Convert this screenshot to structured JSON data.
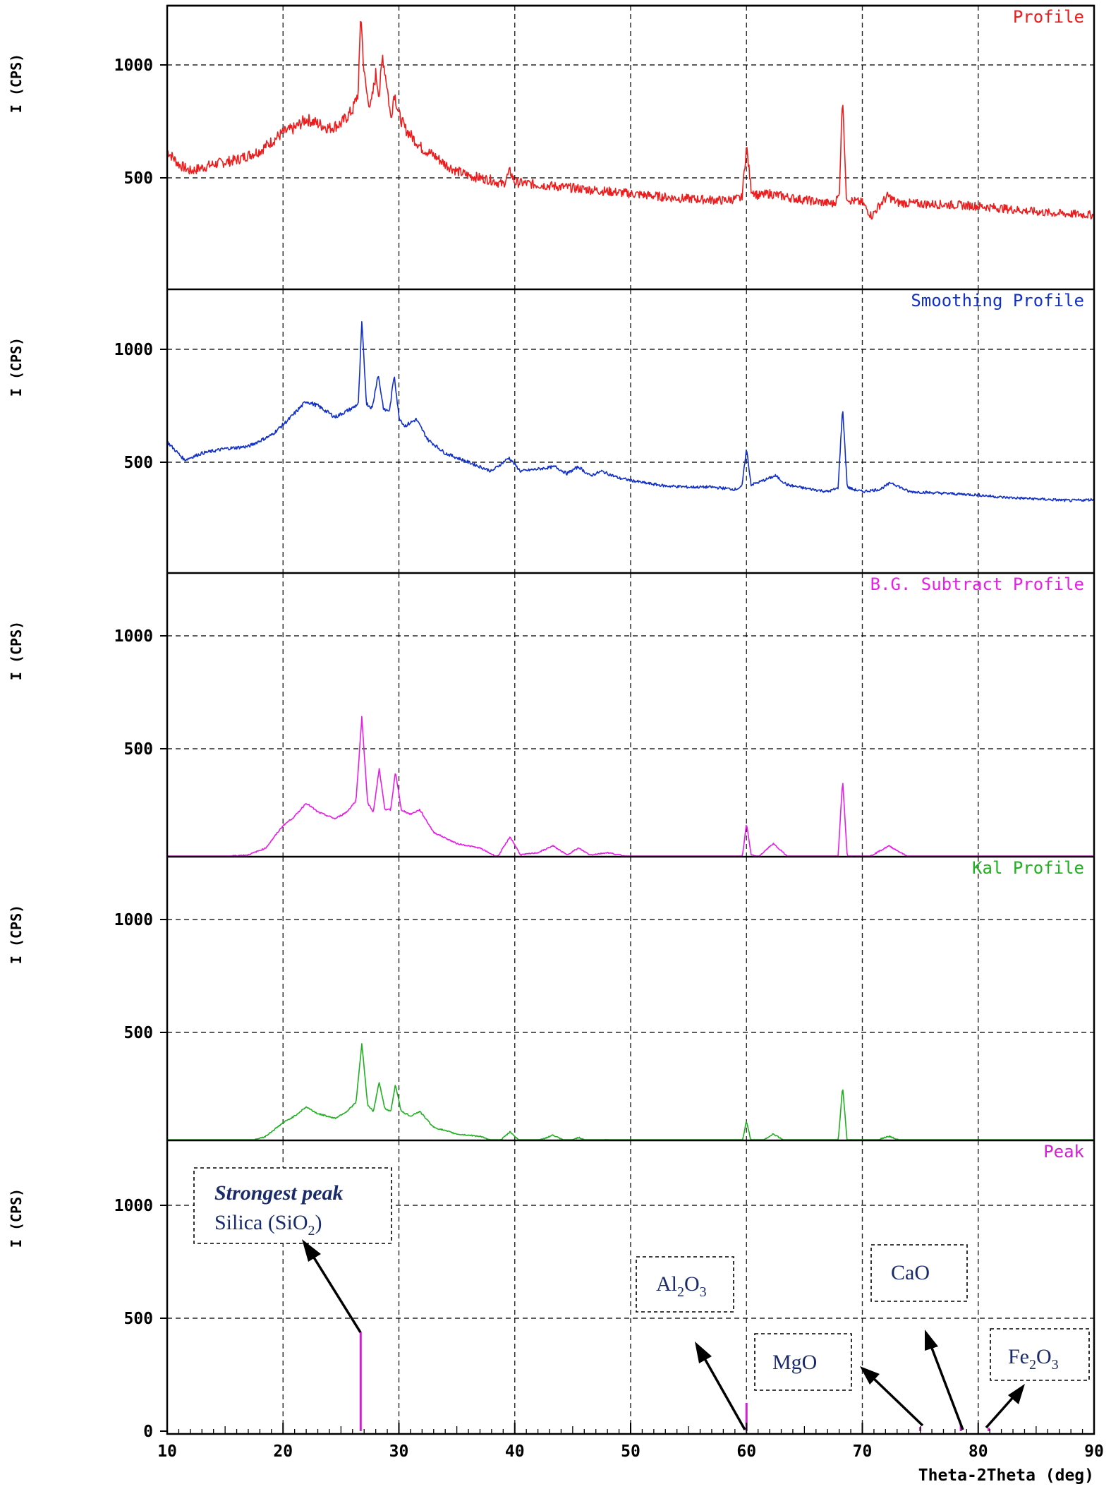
{
  "chart_data": {
    "type": "line",
    "xlabel": "Theta-2Theta (deg)",
    "xlim": [
      10,
      90
    ],
    "x_ticks": [
      "10",
      "20",
      "30",
      "40",
      "50",
      "60",
      "70",
      "80",
      "90"
    ],
    "panels": [
      {
        "ylabel": "I (CPS)",
        "ylim": [
          200,
          1250
        ],
        "y_ticks": [
          "500",
          "1000"
        ],
        "series": [
          {
            "name": "Profile",
            "color": "#ee1c1c",
            "noise": 22,
            "x": [
              10,
              11,
              12,
              14,
              16,
              18,
              19,
              20,
              21,
              22,
              23,
              24,
              25,
              26,
              26.5,
              26.7,
              27,
              27.3,
              27.6,
              28,
              28.3,
              28.6,
              29,
              29.3,
              29.6,
              30,
              30.5,
              31,
              31.5,
              32,
              33,
              34,
              35,
              36,
              37,
              38,
              39,
              39.6,
              40,
              42,
              44,
              46,
              48,
              50,
              52,
              54,
              56,
              58,
              59.6,
              60,
              60.4,
              61,
              62,
              63,
              64,
              66,
              67.5,
              68,
              68.3,
              68.6,
              69,
              70,
              70.8,
              71.5,
              72.2,
              73,
              75,
              78,
              80,
              82,
              84,
              86,
              88,
              90
            ],
            "y": [
              620,
              560,
              530,
              560,
              580,
              620,
              660,
              700,
              720,
              760,
              740,
              720,
              740,
              800,
              880,
              1240,
              960,
              850,
              820,
              960,
              870,
              1040,
              900,
              760,
              880,
              780,
              720,
              690,
              660,
              630,
              600,
              560,
              530,
              510,
              500,
              490,
              470,
              530,
              480,
              470,
              460,
              450,
              440,
              430,
              420,
              410,
              405,
              400,
              410,
              640,
              450,
              420,
              430,
              420,
              410,
              395,
              385,
              420,
              880,
              420,
              400,
              390,
              330,
              380,
              420,
              390,
              385,
              380,
              375,
              365,
              355,
              345,
              340,
              335
            ]
          }
        ]
      },
      {
        "ylabel": "I (CPS)",
        "ylim": [
          200,
          1250
        ],
        "y_ticks": [
          "500",
          "1000"
        ],
        "series": [
          {
            "name": "Smoothing Profile",
            "color": "#1230c8",
            "noise": 7,
            "x": [
              10,
              11.5,
              13,
              15,
              17,
              19,
              20.5,
              22,
              23,
              24.5,
              26,
              26.5,
              26.8,
              27.2,
              27.7,
              28.2,
              28.7,
              29.2,
              29.6,
              30,
              30.5,
              31.5,
              32.5,
              34,
              36,
              38,
              39.5,
              40.5,
              42,
              43.5,
              44.5,
              45.5,
              46.5,
              47.5,
              49,
              51,
              53,
              55,
              57,
              59,
              59.6,
              60,
              60.4,
              61,
              62.5,
              63.5,
              65,
              67,
              67.9,
              68.3,
              68.7,
              69.2,
              70,
              71.5,
              72.5,
              74,
              76,
              78,
              80,
              82,
              84,
              86,
              88,
              90
            ],
            "y": [
              590,
              510,
              540,
              560,
              570,
              620,
              690,
              770,
              750,
              700,
              740,
              760,
              1120,
              760,
              740,
              890,
              730,
              730,
              890,
              700,
              660,
              690,
              600,
              540,
              500,
              460,
              520,
              460,
              470,
              480,
              450,
              480,
              440,
              460,
              430,
              410,
              395,
              390,
              390,
              380,
              390,
              560,
              400,
              410,
              440,
              400,
              385,
              370,
              385,
              740,
              390,
              380,
              370,
              380,
              410,
              370,
              365,
              360,
              355,
              345,
              340,
              335,
              330,
              335
            ]
          }
        ]
      },
      {
        "ylabel": "I (CPS)",
        "ylim": [
          0,
          1250
        ],
        "y_ticks": [
          "500",
          "1000"
        ],
        "series": [
          {
            "name": "B.G. Subtract Profile",
            "color": "#e61ee6",
            "noise": 5,
            "x": [
              10,
              14,
              15.5,
              17,
              18.5,
              20,
              21,
              22,
              23,
              24.5,
              25.5,
              26.3,
              26.8,
              27.3,
              27.8,
              28.3,
              28.8,
              29.3,
              29.7,
              30.2,
              31,
              31.8,
              33,
              35,
              37,
              38.5,
              39.6,
              40.5,
              42,
              43.3,
              44.5,
              45.5,
              46.5,
              48,
              50,
              52,
              55,
              58,
              59.6,
              60,
              60.4,
              61,
              62.3,
              63.5,
              65,
              67,
              67.9,
              68.3,
              68.7,
              69.2,
              70,
              72.3,
              74,
              76,
              80,
              84,
              90
            ],
            "y": [
              0,
              0,
              25,
              30,
              60,
              160,
              200,
              260,
              220,
              190,
              220,
              270,
              640,
              260,
              220,
              410,
              230,
              230,
              400,
              230,
              210,
              230,
              130,
              80,
              60,
              20,
              110,
              30,
              40,
              70,
              30,
              60,
              30,
              40,
              20,
              10,
              5,
              5,
              5,
              170,
              30,
              20,
              80,
              25,
              10,
              5,
              20,
              360,
              20,
              10,
              5,
              70,
              20,
              15,
              10,
              5,
              0
            ]
          }
        ]
      },
      {
        "ylabel": "I (CPS)",
        "ylim": [
          0,
          1250
        ],
        "y_ticks": [
          "500",
          "1000"
        ],
        "series": [
          {
            "name": "Kal Profile",
            "color": "#20b020",
            "noise": 5,
            "x": [
              10,
              14,
              15.5,
              17,
              18.5,
              20,
              21,
              22,
              23,
              24.5,
              25.5,
              26.3,
              26.8,
              27.3,
              27.8,
              28.3,
              28.8,
              29.3,
              29.7,
              30.2,
              31,
              31.8,
              33,
              35,
              37,
              38.5,
              39.6,
              40.5,
              42,
              43.3,
              44.5,
              45.5,
              46.5,
              48,
              50,
              52,
              55,
              58,
              59.6,
              60,
              60.4,
              61,
              62.3,
              63.5,
              65,
              67,
              67.9,
              68.3,
              68.7,
              69.2,
              70,
              72.3,
              74,
              76,
              80,
              84,
              90
            ],
            "y": [
              0,
              0,
              10,
              15,
              40,
              100,
              130,
              170,
              140,
              120,
              150,
              190,
              450,
              180,
              150,
              280,
              160,
              150,
              270,
              150,
              130,
              150,
              80,
              50,
              40,
              10,
              60,
              15,
              20,
              45,
              15,
              35,
              15,
              25,
              10,
              5,
              5,
              5,
              5,
              110,
              15,
              10,
              50,
              15,
              5,
              5,
              10,
              260,
              10,
              5,
              5,
              40,
              10,
              10,
              5,
              5,
              0
            ]
          }
        ]
      },
      {
        "ylabel": "I (CPS)",
        "ylim": [
          0,
          1250
        ],
        "y_ticks": [
          "0",
          "500",
          "1000"
        ],
        "series": [
          {
            "name": "Peak",
            "type": "stick",
            "color": "#d21ed2",
            "x": [
              26.7,
              60.0,
              75.0,
              78.5,
              80.9
            ],
            "y": [
              440,
              125,
              18,
              30,
              15
            ]
          }
        ]
      }
    ],
    "annotations": [
      {
        "title": "Strongest peak",
        "text_main": "Silica (SiO",
        "sub": "2",
        "text_tail": ")"
      },
      {
        "text_main": "Al",
        "sub": "2",
        "text_tail": "O",
        "sub2": "3"
      },
      {
        "text_main": "MgO"
      },
      {
        "text_main": "CaO"
      },
      {
        "text_main": "Fe",
        "sub": "2",
        "text_tail": "O",
        "sub2": "3"
      }
    ]
  }
}
